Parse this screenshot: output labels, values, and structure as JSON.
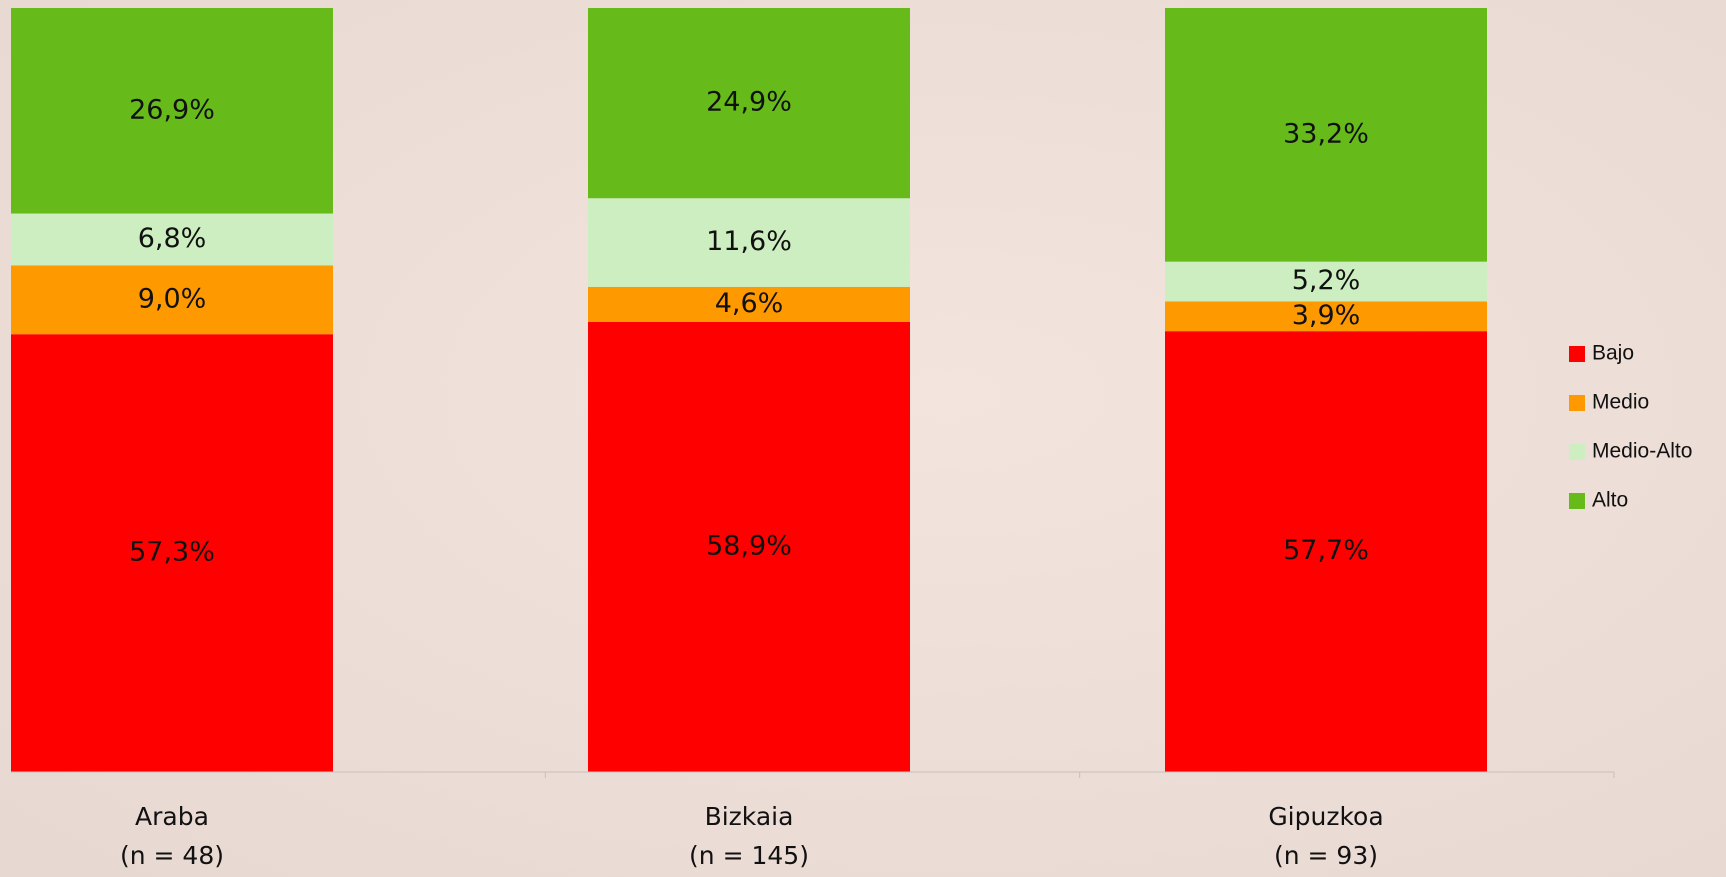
{
  "chart_data": {
    "type": "stacked_bar",
    "categories": [
      "Araba",
      "Bizkaia",
      "Gipuzkoa"
    ],
    "category_sublabels": [
      "(n = 48)",
      "(n = 145)",
      "(n = 93)"
    ],
    "ylim": [
      0,
      100
    ],
    "legend": "right",
    "series": [
      {
        "name": "Bajo",
        "color": "#ff0000",
        "values": [
          57.3,
          58.9,
          57.7
        ],
        "value_labels": [
          "57,3%",
          "58,9%",
          "57,7%"
        ]
      },
      {
        "name": "Medio",
        "color": "#ff9900",
        "values": [
          9.0,
          4.6,
          3.9
        ],
        "value_labels": [
          "9,0%",
          "4,6%",
          "3,9%"
        ]
      },
      {
        "name": "Medio-Alto",
        "color": "#cdeec0",
        "values": [
          6.8,
          11.6,
          5.2
        ],
        "value_labels": [
          "6,8%",
          "11,6%",
          "5,2%"
        ]
      },
      {
        "name": "Alto",
        "color": "#66bb1a",
        "values": [
          26.9,
          24.9,
          33.2
        ],
        "value_labels": [
          "26,9%",
          "24,9%",
          "33,2%"
        ]
      }
    ]
  }
}
